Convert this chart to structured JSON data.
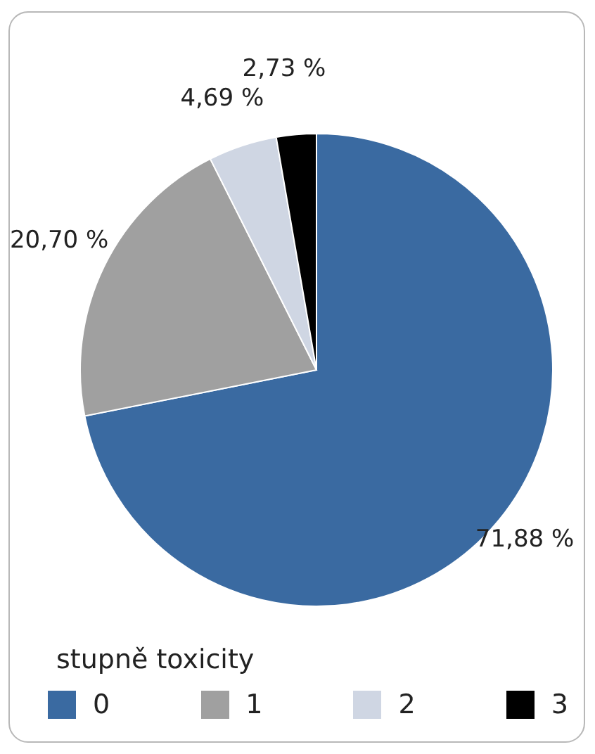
{
  "chart_data": {
    "type": "pie",
    "legend_title": "stupně toxicity",
    "categories": [
      "0",
      "1",
      "2",
      "3"
    ],
    "values": [
      71.88,
      20.7,
      4.69,
      2.73
    ],
    "colors": [
      "#3a6aa1",
      "#a0a0a0",
      "#cfd6e3",
      "#000000"
    ],
    "value_labels": [
      "71,88 %",
      "20,70 %",
      "4,69 %",
      "2,73 %"
    ],
    "legend": "bottom"
  }
}
